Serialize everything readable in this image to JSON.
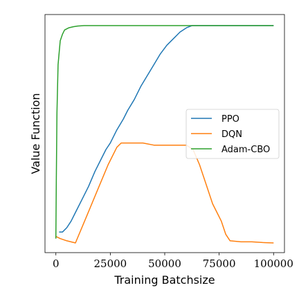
{
  "chart_data": {
    "type": "line",
    "title": "",
    "xlabel": "Training Batchsize",
    "ylabel": "Value Function",
    "xlim": [
      -5000,
      105000
    ],
    "ylim": [
      0,
      1
    ],
    "x_ticks": [
      0,
      25000,
      50000,
      75000,
      100000
    ],
    "x_tick_labels": [
      "0",
      "25000",
      "50000",
      "75000",
      "100000"
    ],
    "y_ticks_shown": false,
    "grid": false,
    "legend": {
      "position": "center-right"
    },
    "series": [
      {
        "name": "PPO",
        "color": "#1f77b4",
        "x": [
          1500,
          3000,
          5000,
          7000,
          9000,
          12000,
          15000,
          18000,
          21000,
          23000,
          25000,
          28000,
          31000,
          33000,
          36000,
          39000,
          42000,
          45000,
          48000,
          51000,
          54000,
          57000,
          60000,
          62500,
          64000,
          66000,
          70000,
          76000,
          85000,
          100000
        ],
        "y": [
          0.05,
          0.05,
          0.07,
          0.1,
          0.14,
          0.2,
          0.26,
          0.33,
          0.39,
          0.43,
          0.46,
          0.52,
          0.57,
          0.61,
          0.66,
          0.72,
          0.77,
          0.82,
          0.87,
          0.91,
          0.94,
          0.97,
          0.99,
          1.0,
          1.0,
          1.0,
          1.0,
          1.0,
          1.0,
          1.0
        ]
      },
      {
        "name": "DQN",
        "color": "#ff7f0e",
        "x": [
          0,
          2000,
          5000,
          9000,
          14000,
          19000,
          24000,
          28000,
          30000,
          32000,
          36000,
          40000,
          45000,
          50000,
          55000,
          60000,
          63000,
          66000,
          68000,
          70000,
          72000,
          74000,
          76000,
          78000,
          80000,
          85000,
          90000,
          95000,
          100000
        ],
        "y": [
          0.03,
          0.02,
          0.01,
          0.0,
          0.12,
          0.24,
          0.36,
          0.44,
          0.46,
          0.46,
          0.46,
          0.46,
          0.45,
          0.45,
          0.45,
          0.45,
          0.43,
          0.36,
          0.3,
          0.24,
          0.18,
          0.14,
          0.1,
          0.04,
          0.01,
          0.005,
          0.005,
          0.002,
          0.0
        ]
      },
      {
        "name": "Adam-CBO",
        "color": "#2ca02c",
        "x": [
          0,
          200,
          500,
          1000,
          2000,
          3000,
          4000,
          6000,
          8000,
          10000,
          13000,
          16000,
          20000,
          40000,
          60000,
          80000,
          100000
        ],
        "y": [
          0.02,
          0.3,
          0.6,
          0.82,
          0.93,
          0.96,
          0.98,
          0.99,
          0.995,
          0.998,
          1.0,
          1.0,
          1.0,
          1.0,
          1.0,
          1.0,
          1.0
        ]
      }
    ]
  }
}
